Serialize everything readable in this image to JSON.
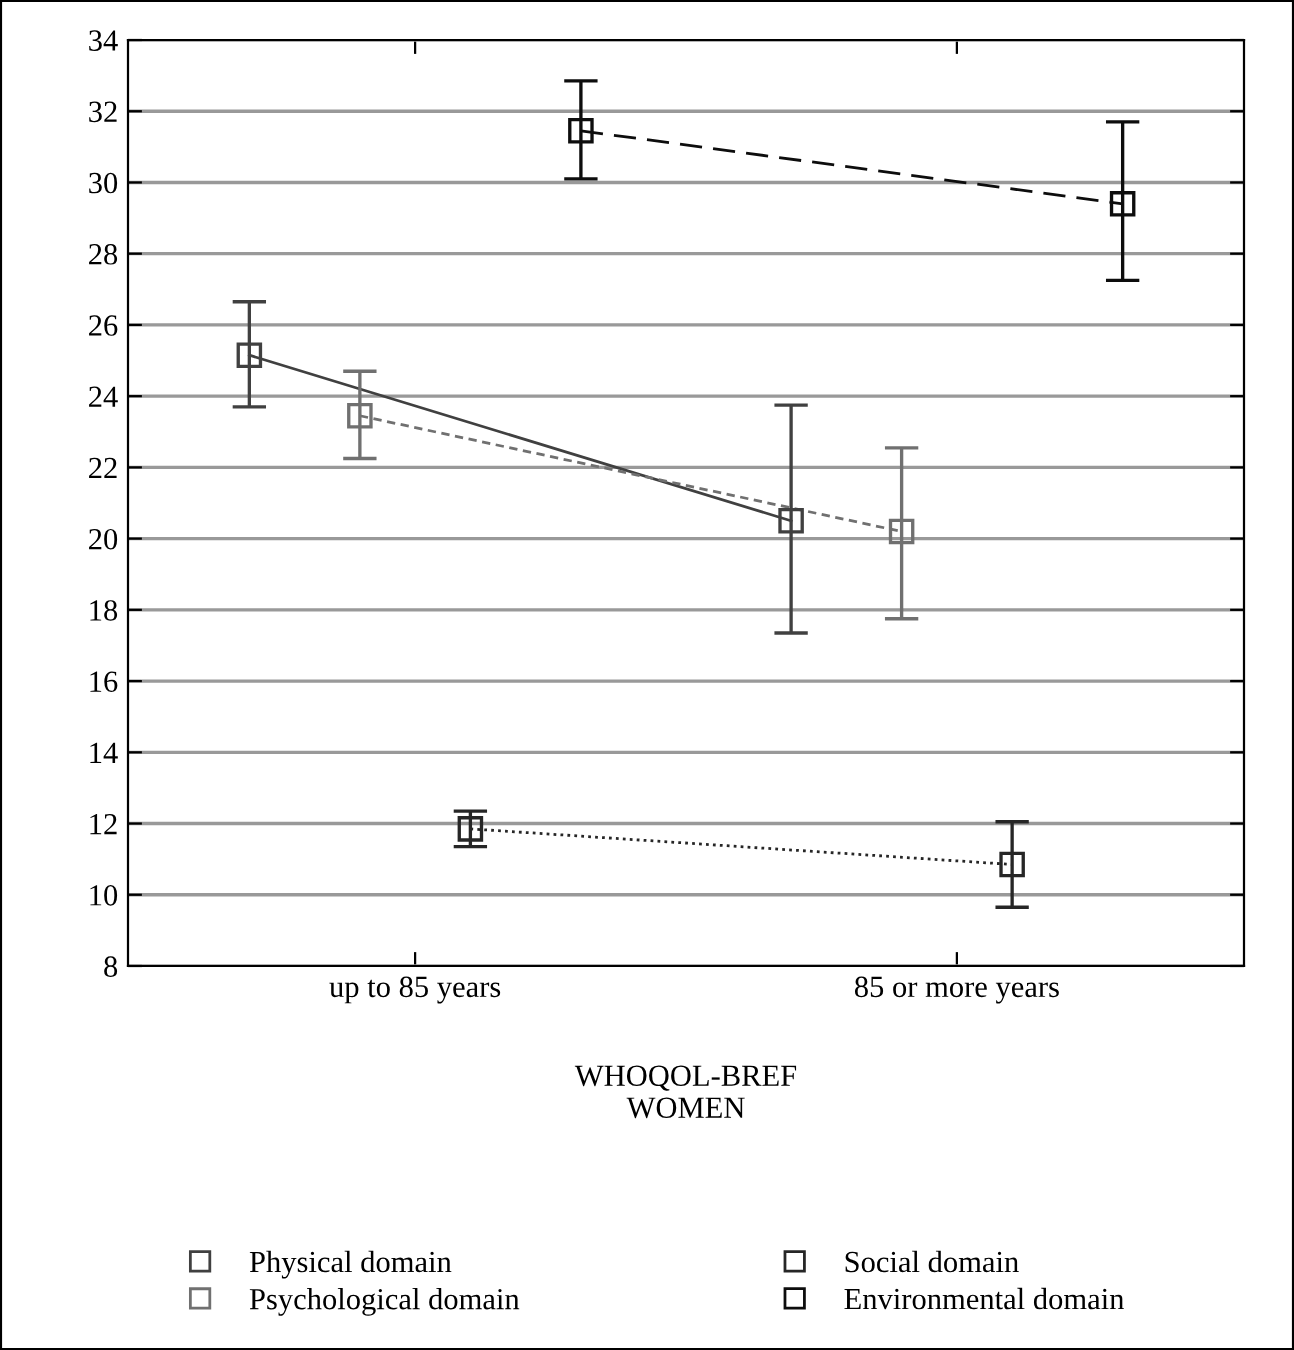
{
  "chart_data": {
    "type": "line",
    "xlabel": "WHOQOL-BREF\nWOMEN",
    "categories": [
      "up to 85 years",
      "85 or more years"
    ],
    "series": [
      {
        "name": "Physical domain",
        "color": "#404040",
        "line_style": "solid",
        "values": [
          25.15,
          20.5
        ],
        "errors": [
          [
            23.7,
            26.65
          ],
          [
            17.35,
            23.75
          ]
        ]
      },
      {
        "name": "Psychological domain",
        "color": "#707070",
        "line_style": "dashed",
        "values": [
          23.45,
          20.2
        ],
        "errors": [
          [
            22.25,
            24.7
          ],
          [
            17.75,
            22.55
          ]
        ]
      },
      {
        "name": "Social domain",
        "color": "#262626",
        "line_style": "dotted",
        "values": [
          11.85,
          10.85
        ],
        "errors": [
          [
            11.35,
            12.35
          ],
          [
            9.65,
            12.05
          ]
        ]
      },
      {
        "name": "Environmental domain",
        "color": "#0d0d0d",
        "line_style": "dashed",
        "values": [
          31.45,
          29.4
        ],
        "errors": [
          [
            30.1,
            32.85
          ],
          [
            27.25,
            31.7
          ]
        ]
      }
    ],
    "ylim": [
      8,
      34
    ],
    "yticks": [
      8,
      10,
      12,
      14,
      16,
      18,
      20,
      22,
      24,
      26,
      28,
      30,
      32,
      34
    ],
    "grid": "y",
    "marker": "square",
    "legend": "bottom"
  }
}
